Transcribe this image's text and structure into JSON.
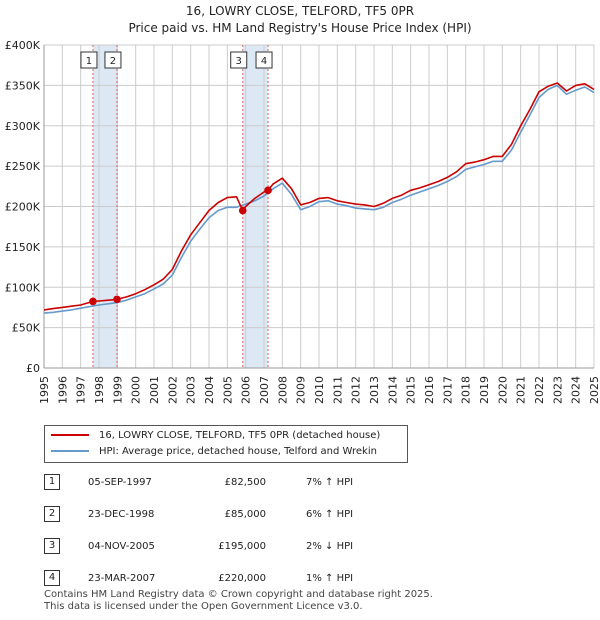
{
  "title": "16, LOWRY CLOSE, TELFORD, TF5 0PR",
  "subtitle": "Price paid vs. HM Land Registry's House Price Index (HPI)",
  "colors": {
    "property": "#cc0000",
    "hpi": "#6699cc",
    "shade": "#dde8f5",
    "grid": "#cccccc"
  },
  "chart_data": {
    "type": "line",
    "title": "16, LOWRY CLOSE, TELFORD, TF5 0PR",
    "subtitle": "Price paid vs. HM Land Registry's House Price Index (HPI)",
    "xlabel": "",
    "ylabel": "",
    "xlim": [
      1995,
      2025
    ],
    "ylim": [
      0,
      400000
    ],
    "grid": true,
    "x_ticks": [
      1995,
      1996,
      1997,
      1998,
      1999,
      2000,
      2001,
      2002,
      2003,
      2004,
      2005,
      2006,
      2007,
      2008,
      2009,
      2010,
      2011,
      2012,
      2013,
      2014,
      2015,
      2016,
      2017,
      2018,
      2019,
      2020,
      2021,
      2022,
      2023,
      2024,
      2025
    ],
    "y_ticks": [
      0,
      50000,
      100000,
      150000,
      200000,
      250000,
      300000,
      350000,
      400000
    ],
    "y_tick_labels": [
      "£0",
      "£50K",
      "£100K",
      "£150K",
      "£200K",
      "£250K",
      "£300K",
      "£350K",
      "£400K"
    ],
    "legend_position": "below",
    "series": [
      {
        "name": "16, LOWRY CLOSE, TELFORD, TF5 0PR (detached house)",
        "x": [
          1995,
          1995.5,
          1996,
          1996.5,
          1997,
          1997.67,
          1998,
          1998.5,
          1998.98,
          1999.5,
          2000,
          2000.5,
          2001,
          2001.5,
          2002,
          2002.5,
          2003,
          2003.5,
          2004,
          2004.5,
          2005,
          2005.5,
          2005.84,
          2006,
          2006.5,
          2007,
          2007.22,
          2007.5,
          2008,
          2008.5,
          2009,
          2009.5,
          2010,
          2010.5,
          2011,
          2011.5,
          2012,
          2012.5,
          2013,
          2013.5,
          2014,
          2014.5,
          2015,
          2015.5,
          2016,
          2016.5,
          2017,
          2017.5,
          2018,
          2018.5,
          2019,
          2019.5,
          2020,
          2020.5,
          2021,
          2021.5,
          2022,
          2022.5,
          2023,
          2023.5,
          2024,
          2024.5,
          2025
        ],
        "y": [
          72000,
          73500,
          75000,
          76500,
          78000,
          82500,
          83000,
          84000,
          85000,
          88000,
          92000,
          97000,
          103000,
          110000,
          122000,
          145000,
          165000,
          180000,
          195000,
          205000,
          211000,
          212000,
          195000,
          200000,
          210000,
          218000,
          220000,
          228000,
          235000,
          222000,
          202000,
          205000,
          210000,
          211000,
          207000,
          205000,
          203000,
          202000,
          200000,
          204000,
          210000,
          214000,
          220000,
          223000,
          227000,
          231000,
          236000,
          243000,
          253000,
          255000,
          258000,
          262000,
          262000,
          277000,
          300000,
          320000,
          342000,
          349000,
          353000,
          343000,
          350000,
          352000,
          345000
        ]
      },
      {
        "name": "HPI: Average price, detached house, Telford and Wrekin",
        "x": [
          1995,
          1995.5,
          1996,
          1996.5,
          1997,
          1997.5,
          1998,
          1998.5,
          1999,
          1999.5,
          2000,
          2000.5,
          2001,
          2001.5,
          2002,
          2002.5,
          2003,
          2003.5,
          2004,
          2004.5,
          2005,
          2005.5,
          2006,
          2006.5,
          2007,
          2007.5,
          2008,
          2008.5,
          2009,
          2009.5,
          2010,
          2010.5,
          2011,
          2011.5,
          2012,
          2012.5,
          2013,
          2013.5,
          2014,
          2014.5,
          2015,
          2015.5,
          2016,
          2016.5,
          2017,
          2017.5,
          2018,
          2018.5,
          2019,
          2019.5,
          2020,
          2020.5,
          2021,
          2021.5,
          2022,
          2022.5,
          2023,
          2023.5,
          2024,
          2024.5,
          2025
        ],
        "y": [
          68000,
          69000,
          70500,
          72000,
          74000,
          76000,
          78000,
          79500,
          81000,
          84000,
          88000,
          92000,
          98000,
          104000,
          115000,
          137000,
          157000,
          172000,
          186000,
          195000,
          199000,
          199000,
          203000,
          207000,
          213000,
          222000,
          229000,
          215000,
          196000,
          200000,
          206000,
          207000,
          203000,
          201000,
          198000,
          197000,
          196000,
          199000,
          205000,
          209000,
          214000,
          218000,
          222000,
          226000,
          231000,
          237000,
          246000,
          249000,
          252000,
          256000,
          256000,
          270000,
          292000,
          313000,
          335000,
          345000,
          350000,
          339000,
          344000,
          348000,
          341000
        ]
      }
    ],
    "sales": [
      {
        "num": "1",
        "x": 1997.67,
        "y": 82500
      },
      {
        "num": "2",
        "x": 1998.98,
        "y": 85000
      },
      {
        "num": "3",
        "x": 2005.84,
        "y": 195000
      },
      {
        "num": "4",
        "x": 2007.22,
        "y": 220000
      }
    ],
    "shaded_periods": [
      [
        1997.67,
        1998.98
      ],
      [
        2005.84,
        2007.22
      ]
    ]
  },
  "legend": {
    "property": "16, LOWRY CLOSE, TELFORD, TF5 0PR (detached house)",
    "hpi": "HPI: Average price, detached house, Telford and Wrekin"
  },
  "sales_table": [
    {
      "num": "1",
      "date": "05-SEP-1997",
      "price": "£82,500",
      "hpi": "7% ↑ HPI"
    },
    {
      "num": "2",
      "date": "23-DEC-1998",
      "price": "£85,000",
      "hpi": "6% ↑ HPI"
    },
    {
      "num": "3",
      "date": "04-NOV-2005",
      "price": "£195,000",
      "hpi": "2% ↓ HPI"
    },
    {
      "num": "4",
      "date": "23-MAR-2007",
      "price": "£220,000",
      "hpi": "1% ↑ HPI"
    }
  ],
  "footer": {
    "line1": "Contains HM Land Registry data © Crown copyright and database right 2025.",
    "line2": "This data is licensed under the Open Government Licence v3.0."
  }
}
